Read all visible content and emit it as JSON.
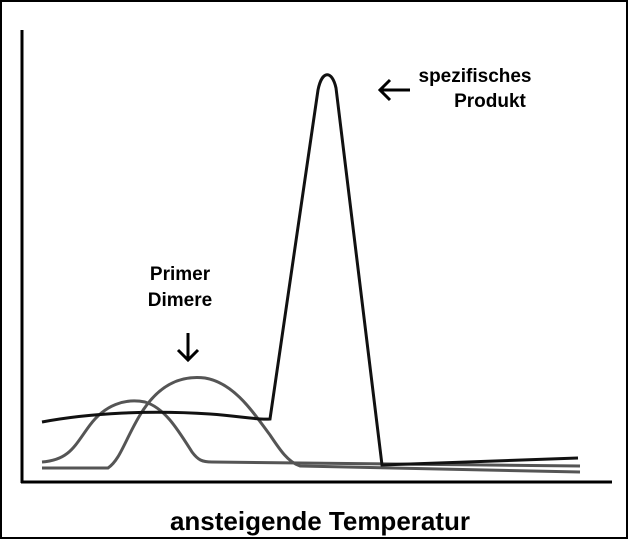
{
  "labels": {
    "product": [
      "spezifisches",
      "Produkt"
    ],
    "dimer": [
      "Primer",
      "Dimere"
    ],
    "x_axis": "ansteigende Temperatur"
  }
}
